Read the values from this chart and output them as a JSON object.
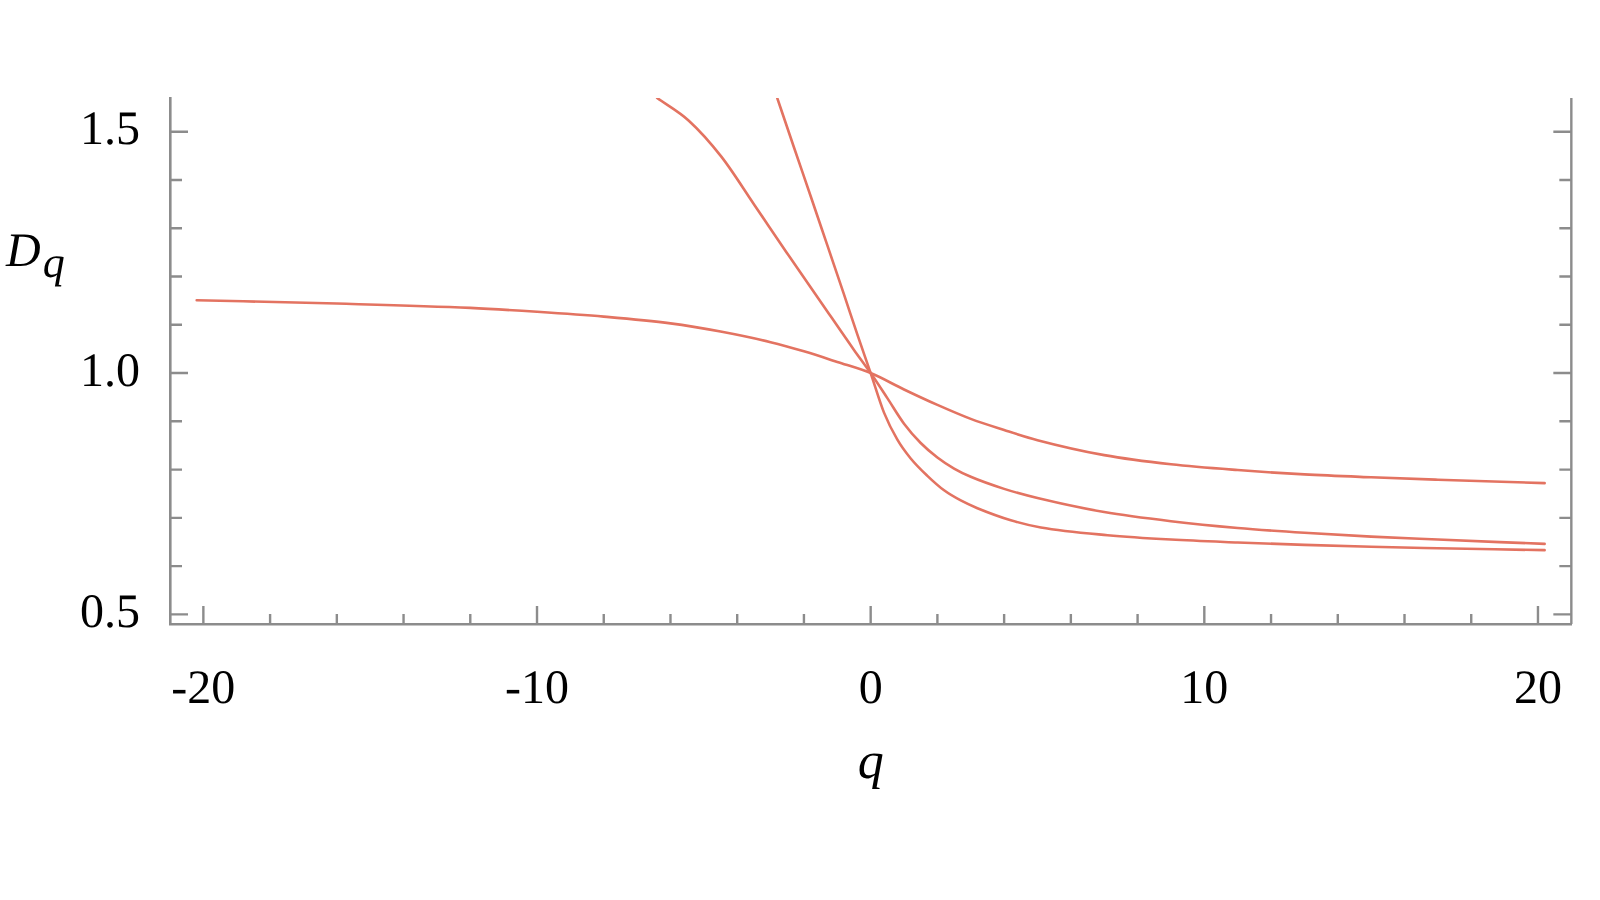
{
  "chart_data": {
    "type": "line",
    "xlabel": "q",
    "ylabel": "D$_{q}$",
    "xlim": [
      -21,
      21
    ],
    "ylim": [
      0.48,
      1.57
    ],
    "xticks": [
      -20,
      {
        "value": -18,
        "label": null
      },
      {
        "value": -16,
        "label": null
      },
      {
        "value": -14,
        "label": null
      },
      {
        "value": -12,
        "label": null
      },
      -10,
      {
        "value": -8,
        "label": null
      },
      {
        "value": -6,
        "label": null
      },
      {
        "value": -4,
        "label": null
      },
      {
        "value": -2,
        "label": null
      },
      0,
      {
        "value": 2,
        "label": null
      },
      {
        "value": 4,
        "label": null
      },
      {
        "value": 6,
        "label": null
      },
      {
        "value": 8,
        "label": null
      },
      10,
      {
        "value": 12,
        "label": null
      },
      {
        "value": 14,
        "label": null
      },
      {
        "value": 16,
        "label": null
      },
      {
        "value": 18,
        "label": null
      },
      20
    ],
    "yticks": [
      0.5,
      {
        "value": 0.6,
        "label": null
      },
      {
        "value": 0.7,
        "label": null
      },
      {
        "value": 0.8,
        "label": null
      },
      {
        "value": 0.9,
        "label": null
      },
      {
        "value": 1,
        "label": "1.0"
      },
      {
        "value": 1.1,
        "label": null
      },
      {
        "value": 1.2,
        "label": null
      },
      {
        "value": 1.3,
        "label": null
      },
      {
        "value": 1.4,
        "label": null
      },
      1.5
    ],
    "grid": false,
    "legend": false,
    "marker": "none",
    "line_style": "solid",
    "series": [
      {
        "color": "#e37361",
        "x": [
          -20.2,
          -16,
          -12,
          -10,
          -8,
          -6,
          -4.5,
          -3,
          -2,
          -1,
          0,
          1,
          2,
          3,
          4,
          5,
          7,
          9,
          11,
          13,
          15,
          17,
          20.2
        ],
        "values": [
          1.151,
          1.144,
          1.135,
          1.127,
          1.117,
          1.103,
          1.086,
          1.064,
          1.045,
          1.023,
          1.0,
          0.966,
          0.934,
          0.905,
          0.882,
          0.861,
          0.83,
          0.811,
          0.799,
          0.79,
          0.784,
          0.779,
          0.772
        ]
      },
      {
        "color": "#e37361",
        "x": [
          -6.4,
          -5.45,
          -4.47,
          -3.49,
          -2.51,
          -1.5,
          -0.5,
          0,
          0.5,
          1,
          1.5,
          2,
          2.5,
          3,
          4,
          5,
          7,
          9,
          11,
          13,
          15,
          17,
          20.2
        ],
        "values": [
          1.57,
          1.523,
          1.448,
          1.349,
          1.249,
          1.148,
          1.048,
          1.0,
          0.948,
          0.895,
          0.855,
          0.825,
          0.802,
          0.785,
          0.76,
          0.741,
          0.712,
          0.693,
          0.679,
          0.669,
          0.661,
          0.655,
          0.646
        ]
      },
      {
        "color": "#e37361",
        "x": [
          -2.8,
          -2.3,
          -1.8,
          -1.3,
          -0.8,
          -0.4,
          0,
          0.4,
          0.8,
          1.2,
          1.7,
          2.2,
          2.7,
          3.2,
          4.2,
          5.1,
          7.1,
          9,
          11,
          13,
          15,
          17,
          20.2
        ],
        "values": [
          1.57,
          1.468,
          1.367,
          1.265,
          1.163,
          1.08,
          1.0,
          0.918,
          0.862,
          0.823,
          0.787,
          0.757,
          0.736,
          0.72,
          0.695,
          0.68,
          0.664,
          0.655,
          0.649,
          0.644,
          0.64,
          0.637,
          0.633
        ]
      }
    ]
  }
}
